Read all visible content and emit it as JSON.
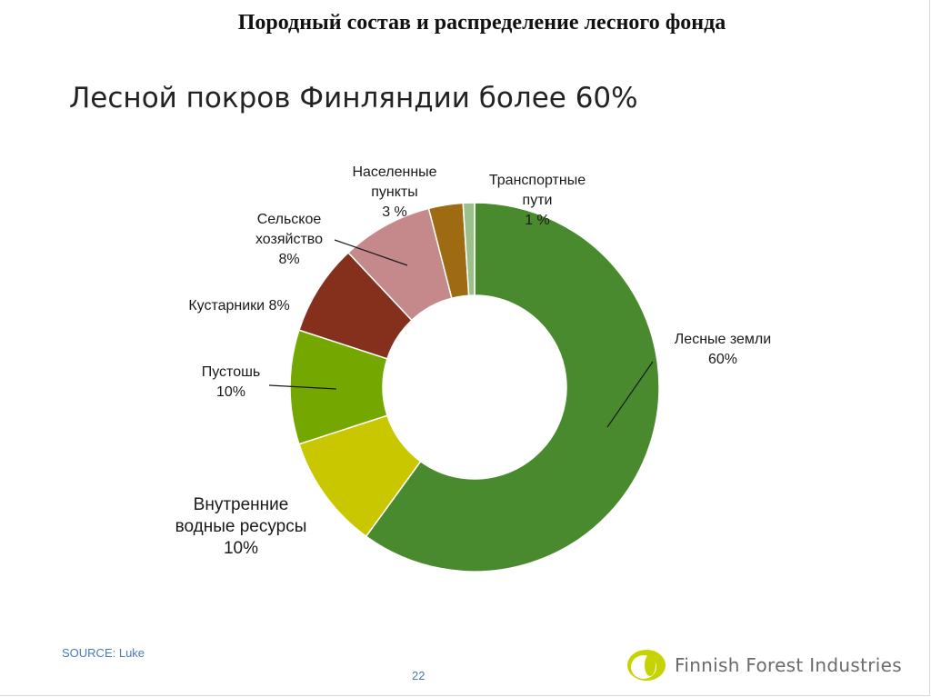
{
  "heading": "Породный состав и распределение лесного фонда",
  "chart_data": {
    "type": "pie",
    "variant": "donut",
    "title": "Лесной покров Финляндии более 60%",
    "slices": [
      {
        "label": [
          "Лесные земли",
          "60%"
        ],
        "value": 60,
        "color": "#4a8a2e"
      },
      {
        "label": [
          "Внутренние",
          "водные ресурсы",
          "10%"
        ],
        "value": 10,
        "color": "#c9c800"
      },
      {
        "label": [
          "Пустошь",
          "10%"
        ],
        "value": 10,
        "color": "#74a800"
      },
      {
        "label": [
          "Кустарники 8%"
        ],
        "value": 8,
        "color": "#84301c"
      },
      {
        "label": [
          "Сельское",
          "хозяйство",
          "8%"
        ],
        "value": 8,
        "color": "#c5898c"
      },
      {
        "label": [
          "Населенные",
          "пункты",
          "3 %"
        ],
        "value": 3,
        "color": "#9e6b12"
      },
      {
        "label": [
          "Транспортные",
          "пути",
          "1 %"
        ],
        "value": 1,
        "color": "#9dbf8a"
      }
    ]
  },
  "footer": {
    "source": "SOURCE: Luke",
    "page_number": "22",
    "logo_text": "Finnish Forest Industries"
  }
}
